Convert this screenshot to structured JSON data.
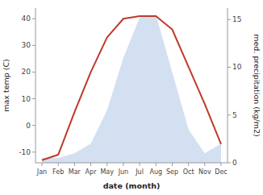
{
  "chart_data": {
    "type": "line",
    "xlabel": "date (month)",
    "ylabel": "max temp (C)",
    "y2label": "med. precipitation (kg/m2)",
    "categories": [
      "Jan",
      "Feb",
      "Mar",
      "Apr",
      "May",
      "Jun",
      "Jul",
      "Aug",
      "Sep",
      "Oct",
      "Nov",
      "Dec"
    ],
    "series": [
      {
        "type": "line",
        "color": "#c0392b",
        "values": [
          -13,
          -11,
          5,
          20,
          33,
          40,
          41,
          41,
          36,
          22,
          8,
          -7
        ]
      },
      {
        "type": "area",
        "color": "#aec6e8",
        "axis": "y2",
        "values": [
          0.5,
          0.5,
          1.0,
          2.0,
          5.5,
          11.0,
          15.2,
          15.5,
          9.5,
          3.5,
          1.0,
          2.0
        ]
      }
    ],
    "ylim": [
      -14,
      44
    ],
    "yticks": [
      -10,
      0,
      10,
      20,
      30,
      40
    ],
    "y2lim": [
      0,
      16.2
    ],
    "y2ticks": [
      0,
      5,
      10,
      15
    ],
    "grid": false
  }
}
